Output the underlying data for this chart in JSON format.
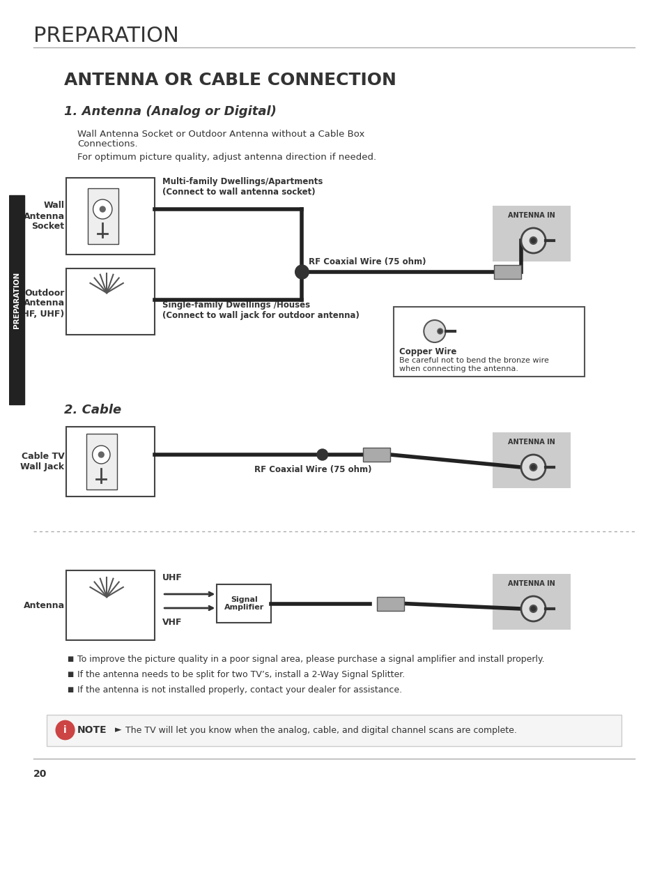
{
  "bg_color": "#ffffff",
  "title_top": "PREPARATION",
  "title_main": "ANTENNA OR CABLE CONNECTION",
  "section1_title": "1. Antenna (Analog or Digital)",
  "section1_desc1": "Wall Antenna Socket or Outdoor Antenna without a Cable Box",
  "section1_desc2": "Connections.",
  "section1_desc3": "For optimum picture quality, adjust antenna direction if needed.",
  "section2_title": "2. Cable",
  "label_wall_antenna": "Wall\nAntenna\nSocket",
  "label_outdoor_antenna": "Outdoor\nAntenna\n(VHF, UHF)",
  "label_multi": "Multi-family Dwellings/Apartments\n(Connect to wall antenna socket)",
  "label_single": "Single-family Dwellings /Houses\n(Connect to wall jack for outdoor antenna)",
  "label_rf1": "RF Coaxial Wire (75 ohm)",
  "label_antenna_in": "ANTENNA IN",
  "label_copper": "Copper Wire",
  "label_copper_warn": "Be careful not to bend the bronze wire\nwhen connecting the antenna.",
  "label_cable_tv": "Cable TV\nWall Jack",
  "label_rf2": "RF Coaxial Wire (75 ohm)",
  "label_antenna": "Antenna",
  "label_uhf": "UHF",
  "label_vhf": "VHF",
  "label_signal_amp": "Signal\nAmplifier",
  "label_antenna_in2": "ANTENNA IN",
  "label_antenna_in3": "ANTENNA IN",
  "bullet1": "To improve the picture quality in a poor signal area, please purchase a signal amplifier and install properly.",
  "bullet2": "If the antenna needs to be split for two TV’s, install a 2-Way Signal Splitter.",
  "bullet3": "If the antenna is not installed properly, contact your dealer for assistance.",
  "note_text": "The TV will let you know when the analog, cable, and digital channel scans are complete.",
  "page_num": "20",
  "sidebar_text": "PREPARATION",
  "dark_color": "#333333",
  "medium_color": "#555555",
  "light_gray": "#cccccc",
  "panel_gray": "#d0d0d0",
  "line_color": "#222222",
  "sidebar_color": "#222222"
}
